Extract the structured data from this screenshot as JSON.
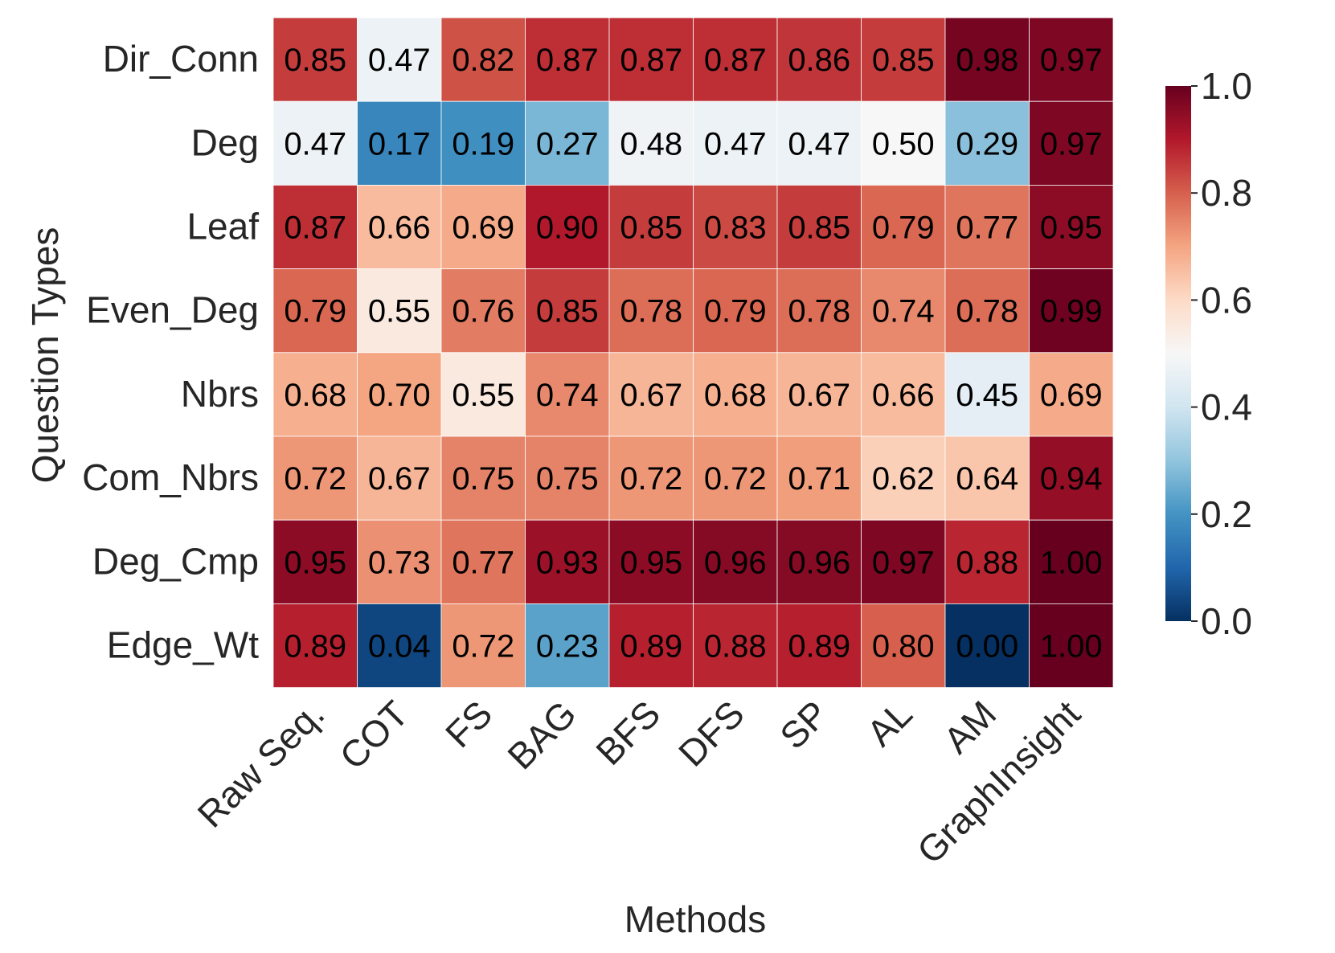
{
  "chart_data": {
    "type": "heatmap",
    "title": "",
    "xlabel": "Methods",
    "ylabel": "Question Types",
    "x_categories": [
      "Raw Seq.",
      "COT",
      "FS",
      "BAG",
      "BFS",
      "DFS",
      "SP",
      "AL",
      "AM",
      "GraphInsight"
    ],
    "y_categories": [
      "Dir_Conn",
      "Deg",
      "Leaf",
      "Even_Deg",
      "Nbrs",
      "Com_Nbrs",
      "Deg_Cmp",
      "Edge_Wt"
    ],
    "values": [
      [
        0.85,
        0.47,
        0.82,
        0.87,
        0.87,
        0.87,
        0.86,
        0.85,
        0.98,
        0.97
      ],
      [
        0.47,
        0.17,
        0.19,
        0.27,
        0.48,
        0.47,
        0.47,
        0.5,
        0.29,
        0.97
      ],
      [
        0.87,
        0.66,
        0.69,
        0.9,
        0.85,
        0.83,
        0.85,
        0.79,
        0.77,
        0.95
      ],
      [
        0.79,
        0.55,
        0.76,
        0.85,
        0.78,
        0.79,
        0.78,
        0.74,
        0.78,
        0.99
      ],
      [
        0.68,
        0.7,
        0.55,
        0.74,
        0.67,
        0.68,
        0.67,
        0.66,
        0.45,
        0.69
      ],
      [
        0.72,
        0.67,
        0.75,
        0.75,
        0.72,
        0.72,
        0.71,
        0.62,
        0.64,
        0.94
      ],
      [
        0.95,
        0.73,
        0.77,
        0.93,
        0.95,
        0.96,
        0.96,
        0.97,
        0.88,
        1.0
      ],
      [
        0.89,
        0.04,
        0.72,
        0.23,
        0.89,
        0.88,
        0.89,
        0.8,
        0.0,
        1.0
      ]
    ],
    "value_format": "2 decimals",
    "colormap": "RdBu_r",
    "color_range": [
      0.0,
      1.0
    ],
    "colorbar": {
      "ticks": [
        0.0,
        0.2,
        0.4,
        0.6,
        0.8,
        1.0
      ],
      "tick_labels": [
        "0.0",
        "0.2",
        "0.4",
        "0.6",
        "0.8",
        "1.0"
      ]
    },
    "colorbar_position": "right",
    "grid": true
  }
}
